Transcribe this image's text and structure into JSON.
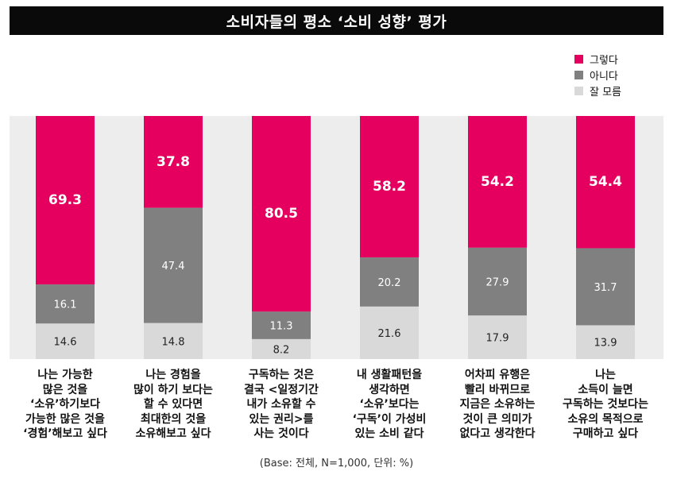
{
  "title": "소비자들의 평소 ‘소비 성향’ 평가",
  "legend": [
    {
      "label": "그렇다",
      "color": "#E5005F"
    },
    {
      "label": "아니다",
      "color": "#808080"
    },
    {
      "label": "잘 모름",
      "color": "#D9D9D9"
    }
  ],
  "footnote": "(Base: 전체, N=1,000, 단위: %)",
  "chart_data": {
    "type": "bar",
    "stacked": true,
    "title": "소비자들의 평소 ‘소비 성향’ 평가",
    "categories": [
      "나는 가능한\n많은 것을\n‘소유’하기보다\n가능한 많은 것을\n‘경험’해보고 싶다",
      "나는 경험을\n많이 하기 보다는\n할 수 있다면\n최대한의 것을\n소유해보고 싶다",
      "구독하는 것은\n결국 <일정기간\n내가 소유할 수\n있는 권리>를\n사는 것이다",
      "내 생활패턴을\n생각하면\n‘소유’보다는\n‘구독’이 가성비\n있는 소비 같다",
      "어차피 유행은\n빨리 바뀌므로\n지금은 소유하는\n것이 큰 의미가\n없다고 생각한다",
      "나는\n소득이 늘면\n구독하는 것보다는\n소유의 목적으로\n구매하고 싶다"
    ],
    "series": [
      {
        "name": "그렇다",
        "color": "#E5005F",
        "values": [
          69.3,
          37.8,
          80.5,
          58.2,
          54.2,
          54.4
        ],
        "labels": [
          "69.3",
          "37.8",
          "80.5",
          "58.2",
          "54.2",
          "54.4"
        ]
      },
      {
        "name": "아니다",
        "color": "#808080",
        "values": [
          16.1,
          47.4,
          11.3,
          20.2,
          27.9,
          31.7
        ],
        "labels": [
          "16.1",
          "47.4",
          "11.3",
          "20.2",
          "27.9",
          "31.7"
        ]
      },
      {
        "name": "잘 모름",
        "color": "#D9D9D9",
        "values": [
          14.6,
          14.8,
          8.2,
          21.6,
          17.9,
          13.9
        ],
        "labels": [
          "14.6",
          "14.8",
          "8.2",
          "21.6",
          "17.9",
          "13.9"
        ]
      }
    ],
    "ylim": [
      0,
      100
    ],
    "unit": "%"
  }
}
